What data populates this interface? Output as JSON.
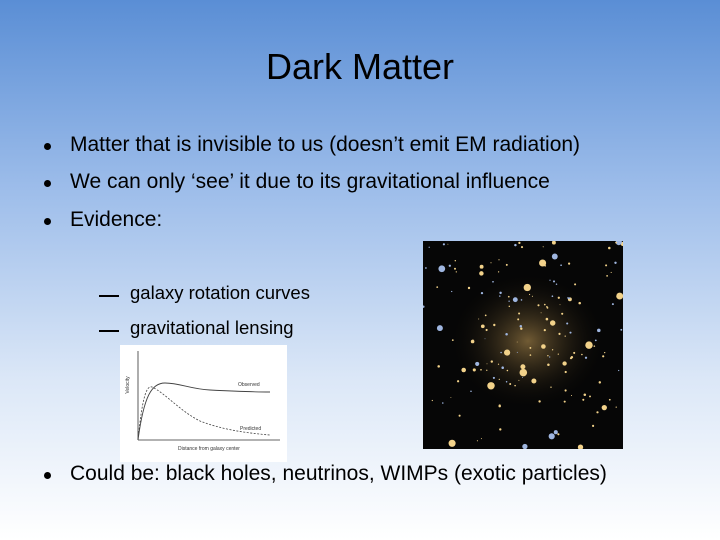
{
  "slide": {
    "title": "Dark Matter",
    "bullets": [
      "Matter that is invisible to us (doesn’t emit EM radiation)",
      "We can only ‘see’ it due to its gravitational influence",
      "Evidence:"
    ],
    "sub_bullets": [
      "galaxy rotation curves",
      "gravitational lensing"
    ],
    "rotation_curve": {
      "y_label": "Velocity",
      "x_label": "Distance from galaxy center",
      "curve_labels": [
        "Observed",
        "Predicted"
      ]
    },
    "last_bullet": "Could be: black holes, neutrinos, WIMPs (exotic particles)"
  }
}
